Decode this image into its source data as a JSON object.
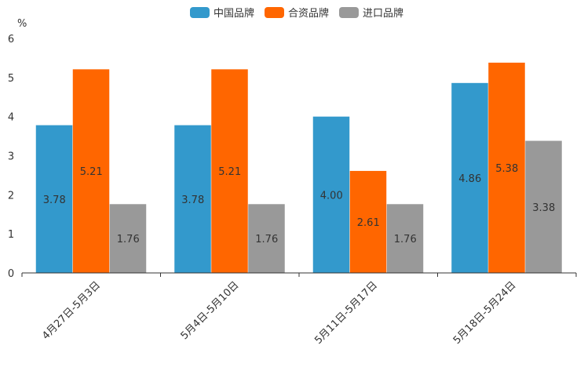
{
  "chart_data": {
    "type": "bar",
    "ylabel": "%",
    "ylim": [
      0,
      6
    ],
    "yticks": [
      0,
      1,
      2,
      3,
      4,
      5,
      6
    ],
    "categories": [
      "4月27日-5月3日",
      "5月4日-5月10日",
      "5月11日-5月17日",
      "5月18日-5月24日"
    ],
    "series": [
      {
        "name": "中国品牌",
        "color": "#3399cc",
        "values": [
          3.78,
          3.78,
          4.0,
          4.86
        ]
      },
      {
        "name": "合资品牌",
        "color": "#ff6600",
        "values": [
          5.21,
          5.21,
          2.61,
          5.38
        ]
      },
      {
        "name": "进口品牌",
        "color": "#999999",
        "values": [
          1.76,
          1.76,
          1.76,
          3.38
        ]
      }
    ],
    "legend": "top-center",
    "grid": false
  }
}
